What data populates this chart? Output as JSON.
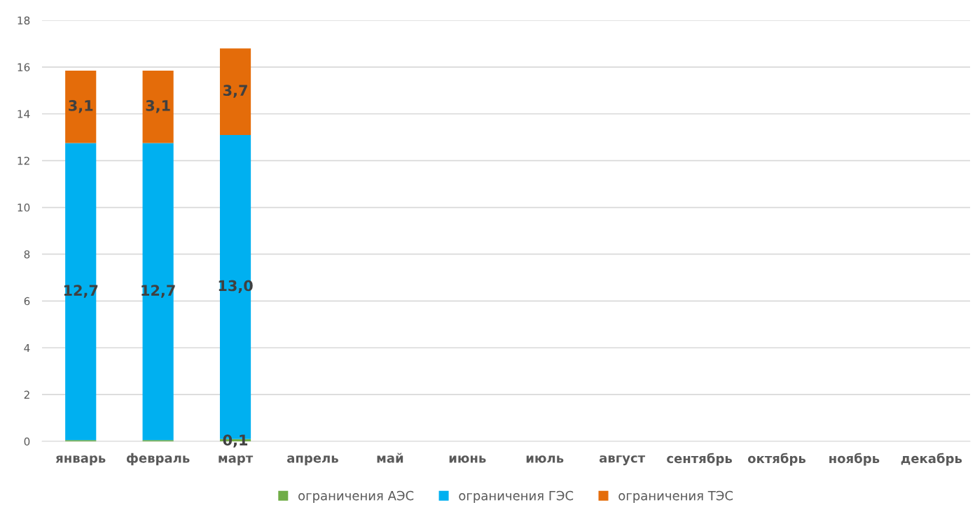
{
  "chart_data": {
    "type": "bar",
    "stacked": true,
    "categories": [
      "январь",
      "февраль",
      "март",
      "апрель",
      "май",
      "июнь",
      "июль",
      "август",
      "сентябрь",
      "октябрь",
      "ноябрь",
      "декабрь"
    ],
    "series": [
      {
        "name": "ограничения АЭС",
        "color": "#70ad47",
        "values": [
          0.05,
          0.05,
          0.1,
          null,
          null,
          null,
          null,
          null,
          null,
          null,
          null,
          null
        ],
        "value_labels": [
          null,
          null,
          "0,1",
          null,
          null,
          null,
          null,
          null,
          null,
          null,
          null,
          null
        ]
      },
      {
        "name": "ограничения ГЭС",
        "color": "#00b0f0",
        "values": [
          12.7,
          12.7,
          13.0,
          null,
          null,
          null,
          null,
          null,
          null,
          null,
          null,
          null
        ],
        "value_labels": [
          "12,7",
          "12,7",
          "13,0",
          null,
          null,
          null,
          null,
          null,
          null,
          null,
          null,
          null
        ]
      },
      {
        "name": "ограничения ТЭС",
        "color": "#e46c0a",
        "values": [
          3.1,
          3.1,
          3.7,
          null,
          null,
          null,
          null,
          null,
          null,
          null,
          null,
          null
        ],
        "value_labels": [
          "3,1",
          "3,1",
          "3,7",
          null,
          null,
          null,
          null,
          null,
          null,
          null,
          null,
          null
        ]
      }
    ],
    "ylim": [
      0,
      18
    ],
    "yticks": [
      0,
      2,
      4,
      6,
      8,
      10,
      12,
      14,
      16,
      18
    ],
    "grid": "y",
    "legend": "bottom"
  }
}
